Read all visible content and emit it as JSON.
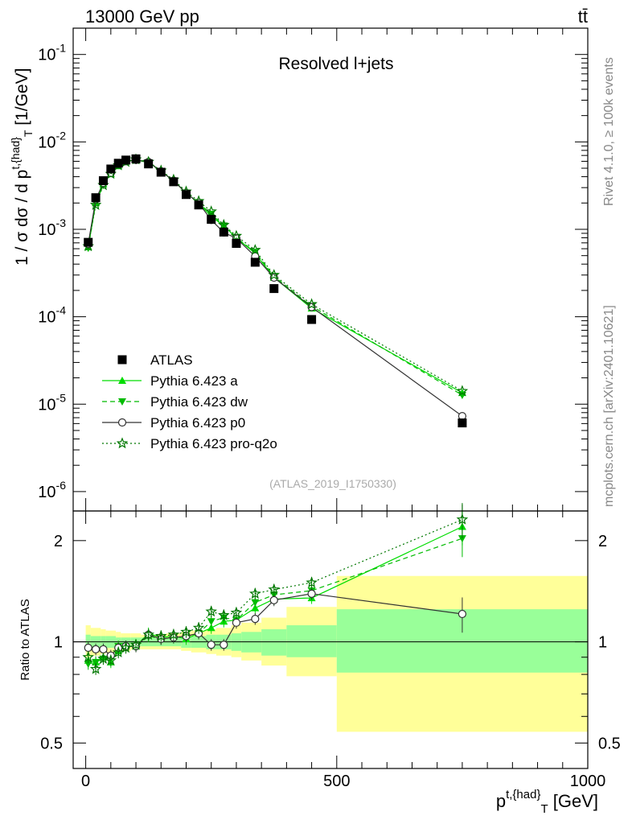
{
  "header": {
    "left": "13000 GeV pp",
    "right": "tt̄"
  },
  "side": {
    "rivet": "Rivet 4.1.0, ≥ 100k events",
    "mcplots": "mcplots.cern.ch [arXiv:2401.10621]"
  },
  "colors": {
    "atlas": "#000000",
    "a": "#00dd00",
    "dw": "#00bb00",
    "p0": "#333333",
    "q2o": "#007700",
    "band_inner": "#99ff99",
    "band_outer": "#ffff99"
  },
  "chart_data": [
    {
      "type": "scatter",
      "panel": "main",
      "title": "Resolved l+jets",
      "analysis_id": "(ATLAS_2019_I1750330)",
      "ylabel": "1 / σ dσ / d p^{t,{had}}_{T} [1/GeV]",
      "yscale": "log",
      "ylim": [
        6e-07,
        0.2
      ],
      "xlim": [
        -25,
        1000
      ],
      "ytick_labels": [
        "10^-6",
        "10^-5",
        "10^-4",
        "10^-3",
        "10^-2",
        "10^-1"
      ],
      "x": [
        5,
        20,
        35,
        50,
        65,
        80,
        100,
        125,
        150,
        175,
        200,
        225,
        250,
        275,
        300,
        337.5,
        375,
        450,
        750
      ],
      "series": [
        {
          "name": "ATLAS",
          "marker": "square",
          "values": [
            0.00071,
            0.0023,
            0.0036,
            0.0049,
            0.0057,
            0.0062,
            0.0064,
            0.0056,
            0.0045,
            0.0035,
            0.0025,
            0.0019,
            0.0013,
            0.00093,
            0.00069,
            0.00042,
            0.00021,
            9.3e-05,
            6.1e-06
          ]
        },
        {
          "name": "Pythia 6.423 a",
          "marker": "triangle-up",
          "style": "solid",
          "values": [
            0.00063,
            0.002,
            0.0033,
            0.0043,
            0.0053,
            0.006,
            0.0062,
            0.0059,
            0.0046,
            0.0036,
            0.0026,
            0.002,
            0.0014,
            0.0011,
            0.0008,
            0.00053,
            0.00028,
            0.000125,
            1.35e-05
          ]
        },
        {
          "name": "Pythia 6.423 dw",
          "marker": "triangle-down",
          "style": "dashed",
          "values": [
            0.00061,
            0.002,
            0.0032,
            0.0044,
            0.0055,
            0.006,
            0.0062,
            0.0058,
            0.0046,
            0.0036,
            0.0026,
            0.002,
            0.0015,
            0.0011,
            0.0008,
            0.00055,
            0.00029,
            0.000132,
            1.27e-05
          ]
        },
        {
          "name": "Pythia 6.423 p0",
          "marker": "circle-open",
          "style": "solid",
          "values": [
            0.00068,
            0.0022,
            0.0034,
            0.0044,
            0.0055,
            0.006,
            0.0062,
            0.0059,
            0.0046,
            0.0036,
            0.0026,
            0.002,
            0.00128,
            0.00092,
            0.00079,
            0.00049,
            0.00028,
            0.000129,
            7.3e-06
          ]
        },
        {
          "name": "Pythia 6.423 pro-q2o",
          "marker": "star-open",
          "style": "dotted",
          "values": [
            0.00064,
            0.0019,
            0.0032,
            0.0043,
            0.0054,
            0.0059,
            0.0063,
            0.0059,
            0.0047,
            0.0037,
            0.0027,
            0.0021,
            0.0016,
            0.00112,
            0.00084,
            0.00058,
            0.0003,
            0.000139,
            1.41e-05
          ]
        }
      ]
    },
    {
      "type": "scatter",
      "panel": "ratio",
      "ylabel": "Ratio to ATLAS",
      "xlabel": "p^{t,{had}}_{T} [GeV]",
      "yscale": "log",
      "ylim": [
        0.42,
        2.45
      ],
      "xlim": [
        -25,
        1000
      ],
      "yticks": [
        0.5,
        1,
        2
      ],
      "ytick_labels": [
        "0.5",
        "1",
        "2"
      ],
      "xticks": [
        0,
        500,
        1000
      ],
      "xtick_labels": [
        "0",
        "500",
        "1000"
      ],
      "x": [
        5,
        20,
        35,
        50,
        65,
        80,
        100,
        125,
        150,
        175,
        200,
        225,
        250,
        275,
        300,
        337.5,
        375,
        450,
        750
      ],
      "bands": {
        "edges": [
          0,
          10,
          30,
          40,
          60,
          70,
          90,
          110,
          140,
          160,
          190,
          210,
          240,
          260,
          290,
          310,
          350,
          400,
          500,
          1000
        ],
        "inner_lo": [
          0.95,
          0.96,
          0.96,
          0.96,
          0.97,
          0.97,
          0.97,
          0.97,
          0.97,
          0.97,
          0.96,
          0.96,
          0.95,
          0.95,
          0.94,
          0.93,
          0.91,
          0.9,
          0.81
        ],
        "inner_hi": [
          1.05,
          1.04,
          1.04,
          1.04,
          1.03,
          1.03,
          1.03,
          1.03,
          1.03,
          1.03,
          1.04,
          1.04,
          1.05,
          1.05,
          1.06,
          1.07,
          1.09,
          1.12,
          1.25
        ],
        "outer_lo": [
          0.9,
          0.91,
          0.92,
          0.93,
          0.94,
          0.94,
          0.95,
          0.95,
          0.95,
          0.95,
          0.94,
          0.93,
          0.92,
          0.91,
          0.9,
          0.88,
          0.85,
          0.79,
          0.54
        ],
        "outer_hi": [
          1.12,
          1.1,
          1.09,
          1.08,
          1.07,
          1.06,
          1.06,
          1.05,
          1.05,
          1.06,
          1.07,
          1.08,
          1.09,
          1.1,
          1.12,
          1.14,
          1.18,
          1.27,
          1.57
        ]
      },
      "series": [
        {
          "name": "Pythia 6.423 a",
          "marker": "triangle-up",
          "style": "solid",
          "values": [
            0.88,
            0.87,
            0.9,
            0.87,
            0.94,
            0.97,
            0.97,
            1.06,
            1.03,
            1.04,
            1.02,
            1.06,
            1.1,
            1.15,
            1.16,
            1.26,
            1.34,
            1.35,
            2.2
          ]
        },
        {
          "name": "Pythia 6.423 dw",
          "marker": "triangle-down",
          "style": "dashed",
          "values": [
            0.86,
            0.87,
            0.89,
            0.9,
            0.97,
            0.97,
            0.97,
            1.04,
            1.02,
            1.03,
            1.04,
            1.06,
            1.15,
            1.18,
            1.16,
            1.31,
            1.38,
            1.42,
            2.03
          ]
        },
        {
          "name": "Pythia 6.423 p0",
          "marker": "circle-open",
          "style": "solid",
          "values": [
            0.96,
            0.95,
            0.95,
            0.91,
            0.96,
            0.97,
            0.97,
            1.05,
            1.02,
            1.03,
            1.04,
            1.06,
            0.98,
            0.98,
            1.14,
            1.17,
            1.33,
            1.39,
            1.21
          ]
        },
        {
          "name": "Pythia 6.423 pro-q2o",
          "marker": "star-open",
          "style": "dotted",
          "values": [
            0.9,
            0.83,
            0.89,
            0.88,
            0.93,
            0.96,
            0.98,
            1.05,
            1.04,
            1.05,
            1.07,
            1.1,
            1.23,
            1.2,
            1.22,
            1.39,
            1.43,
            1.5,
            2.31
          ]
        }
      ]
    }
  ]
}
